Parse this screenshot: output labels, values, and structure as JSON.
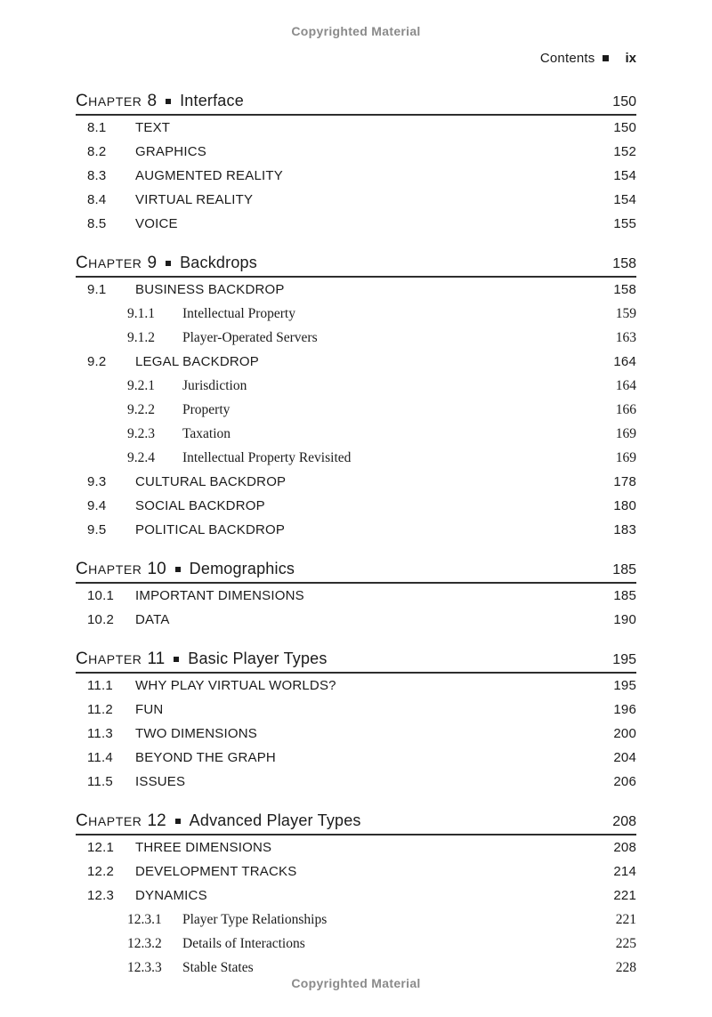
{
  "page": {
    "copyright_top": "Copyrighted Material",
    "copyright_bottom": "Copyrighted Material"
  },
  "running_head": {
    "label": "Contents",
    "folio": "ix"
  },
  "chapter_word": "Chapter",
  "chapters": [
    {
      "number": "8",
      "title": "Interface",
      "page": "150",
      "entries": [
        {
          "level": 1,
          "num": "8.1",
          "title": "TEXT",
          "page": "150"
        },
        {
          "level": 1,
          "num": "8.2",
          "title": "GRAPHICS",
          "page": "152"
        },
        {
          "level": 1,
          "num": "8.3",
          "title": "AUGMENTED REALITY",
          "page": "154"
        },
        {
          "level": 1,
          "num": "8.4",
          "title": "VIRTUAL REALITY",
          "page": "154"
        },
        {
          "level": 1,
          "num": "8.5",
          "title": "VOICE",
          "page": "155"
        }
      ]
    },
    {
      "number": "9",
      "title": "Backdrops",
      "page": "158",
      "entries": [
        {
          "level": 1,
          "num": "9.1",
          "title": "BUSINESS BACKDROP",
          "page": "158"
        },
        {
          "level": 2,
          "num": "9.1.1",
          "title": "Intellectual Property",
          "page": "159"
        },
        {
          "level": 2,
          "num": "9.1.2",
          "title": "Player-Operated Servers",
          "page": "163"
        },
        {
          "level": 1,
          "num": "9.2",
          "title": "LEGAL BACKDROP",
          "page": "164"
        },
        {
          "level": 2,
          "num": "9.2.1",
          "title": "Jurisdiction",
          "page": "164"
        },
        {
          "level": 2,
          "num": "9.2.2",
          "title": "Property",
          "page": "166"
        },
        {
          "level": 2,
          "num": "9.2.3",
          "title": "Taxation",
          "page": "169"
        },
        {
          "level": 2,
          "num": "9.2.4",
          "title": "Intellectual Property Revisited",
          "page": "169"
        },
        {
          "level": 1,
          "num": "9.3",
          "title": "CULTURAL BACKDROP",
          "page": "178"
        },
        {
          "level": 1,
          "num": "9.4",
          "title": "SOCIAL BACKDROP",
          "page": "180"
        },
        {
          "level": 1,
          "num": "9.5",
          "title": "POLITICAL BACKDROP",
          "page": "183"
        }
      ]
    },
    {
      "number": "10",
      "title": "Demographics",
      "page": "185",
      "entries": [
        {
          "level": 1,
          "num": "10.1",
          "title": "IMPORTANT DIMENSIONS",
          "page": "185"
        },
        {
          "level": 1,
          "num": "10.2",
          "title": "DATA",
          "page": "190"
        }
      ]
    },
    {
      "number": "11",
      "title": "Basic Player Types",
      "page": "195",
      "entries": [
        {
          "level": 1,
          "num": "11.1",
          "title": "WHY PLAY VIRTUAL WORLDS?",
          "page": "195"
        },
        {
          "level": 1,
          "num": "11.2",
          "title": "FUN",
          "page": "196"
        },
        {
          "level": 1,
          "num": "11.3",
          "title": "TWO DIMENSIONS",
          "page": "200"
        },
        {
          "level": 1,
          "num": "11.4",
          "title": "BEYOND THE GRAPH",
          "page": "204"
        },
        {
          "level": 1,
          "num": "11.5",
          "title": "ISSUES",
          "page": "206"
        }
      ]
    },
    {
      "number": "12",
      "title": "Advanced Player Types",
      "page": "208",
      "entries": [
        {
          "level": 1,
          "num": "12.1",
          "title": "THREE DIMENSIONS",
          "page": "208"
        },
        {
          "level": 1,
          "num": "12.2",
          "title": "DEVELOPMENT TRACKS",
          "page": "214"
        },
        {
          "level": 1,
          "num": "12.3",
          "title": "DYNAMICS",
          "page": "221"
        },
        {
          "level": 2,
          "num": "12.3.1",
          "title": "Player Type Relationships",
          "page": "221"
        },
        {
          "level": 2,
          "num": "12.3.2",
          "title": "Details of Interactions",
          "page": "225"
        },
        {
          "level": 2,
          "num": "12.3.3",
          "title": "Stable States",
          "page": "228"
        }
      ]
    }
  ]
}
